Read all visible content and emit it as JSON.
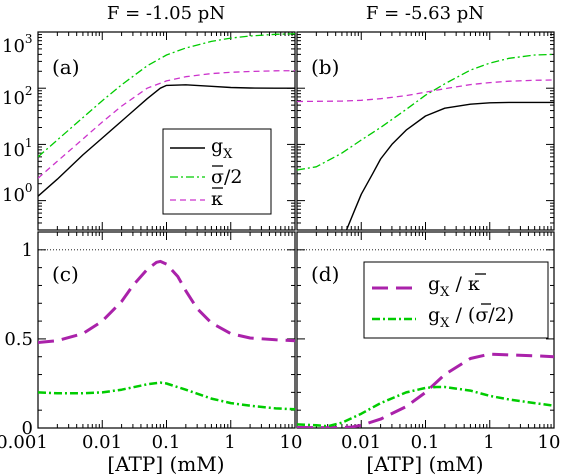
{
  "chart_data": [
    {
      "panel": "(a)",
      "title": "F = -1.05 pN",
      "type": "line",
      "xscale": "log",
      "yscale": "log",
      "xlim": [
        0.001,
        10
      ],
      "ylim": [
        0.3,
        1000
      ],
      "xlabel": "",
      "ylabel": "",
      "yticks": [
        1,
        10,
        100,
        1000
      ],
      "ytick_labels_main": [
        "10",
        "10",
        "10",
        "10"
      ],
      "ytick_labels_exp": [
        "0",
        "1",
        "2",
        "3"
      ],
      "legend_position": "lower-right",
      "series": [
        {
          "key": "gX",
          "name": "g",
          "name_sub": "X",
          "color": "#000000",
          "dash": "solid",
          "width": 1.4,
          "x": [
            0.001,
            0.002,
            0.005,
            0.01,
            0.02,
            0.05,
            0.08,
            0.1,
            0.2,
            0.5,
            1,
            2,
            5,
            10
          ],
          "y": [
            1.2,
            2.4,
            6.5,
            13,
            26,
            65,
            100,
            112,
            115,
            108,
            103,
            101,
            100,
            100
          ]
        },
        {
          "key": "sigma",
          "name": "σ/2",
          "color": "#00cc00",
          "dash": "dashdot",
          "width": 1.3,
          "x": [
            0.001,
            0.002,
            0.005,
            0.01,
            0.02,
            0.05,
            0.1,
            0.2,
            0.5,
            1,
            2,
            5,
            10
          ],
          "y": [
            6,
            12,
            30,
            60,
            115,
            250,
            390,
            520,
            680,
            780,
            850,
            910,
            930
          ]
        },
        {
          "key": "kappa",
          "name": "κ",
          "color": "#cc33cc",
          "dash": "dashed",
          "width": 1.3,
          "x": [
            0.001,
            0.002,
            0.005,
            0.01,
            0.02,
            0.05,
            0.1,
            0.2,
            0.5,
            1,
            2,
            5,
            10
          ],
          "y": [
            2.5,
            5,
            12.5,
            25,
            48,
            100,
            135,
            160,
            182,
            192,
            198,
            204,
            205
          ]
        }
      ]
    },
    {
      "panel": "(b)",
      "title": "F = -5.63 pN",
      "type": "line",
      "xscale": "log",
      "yscale": "log",
      "xlim": [
        0.001,
        10
      ],
      "ylim": [
        0.3,
        1000
      ],
      "series": [
        {
          "key": "gX",
          "name": "g",
          "name_sub": "X",
          "color": "#000000",
          "dash": "solid",
          "width": 1.4,
          "x": [
            0.0059,
            0.008,
            0.01,
            0.015,
            0.02,
            0.03,
            0.05,
            0.1,
            0.2,
            0.5,
            1,
            2,
            5,
            10
          ],
          "y": [
            0.3,
            0.7,
            1.3,
            3,
            5.5,
            10,
            18,
            32,
            44,
            52,
            55,
            56,
            56,
            56
          ]
        },
        {
          "key": "sigma",
          "name": "σ/2",
          "color": "#00cc00",
          "dash": "dashdot",
          "width": 1.3,
          "x": [
            0.001,
            0.002,
            0.005,
            0.01,
            0.02,
            0.05,
            0.1,
            0.2,
            0.5,
            1,
            2,
            5,
            10
          ],
          "y": [
            3.5,
            4,
            7,
            12,
            20,
            42,
            75,
            120,
            210,
            280,
            340,
            390,
            400
          ]
        },
        {
          "key": "kappa",
          "name": "κ",
          "color": "#cc33cc",
          "dash": "dashed",
          "width": 1.3,
          "x": [
            0.001,
            0.005,
            0.01,
            0.02,
            0.05,
            0.1,
            0.2,
            0.5,
            1,
            2,
            5,
            10
          ],
          "y": [
            58,
            59,
            61,
            65,
            74,
            85,
            98,
            116,
            126,
            133,
            138,
            140
          ]
        }
      ]
    },
    {
      "panel": "(c)",
      "type": "line",
      "xscale": "log",
      "yscale": "linear",
      "xlim": [
        0.001,
        10
      ],
      "ylim": [
        0,
        1.1
      ],
      "xlabel": "[ATP] (mM)",
      "yticks": [
        0,
        0.5,
        1
      ],
      "ytick_labels": [
        "0",
        "0.5",
        "1"
      ],
      "xticks": [
        0.001,
        0.01,
        0.1,
        1,
        10
      ],
      "xtick_labels": [
        "0.001",
        "0.01",
        "0.1",
        "1",
        "10"
      ],
      "reference_line": {
        "y": 1,
        "style": "dotted"
      },
      "series": [
        {
          "key": "gk",
          "name": "g",
          "name_sub": "X",
          "name_tail": " / κ",
          "color": "#aa22aa",
          "dash": "longdash",
          "width": 3,
          "x": [
            0.001,
            0.002,
            0.005,
            0.01,
            0.02,
            0.03,
            0.05,
            0.07,
            0.08,
            0.1,
            0.15,
            0.2,
            0.3,
            0.5,
            1,
            2,
            5,
            10
          ],
          "y": [
            0.48,
            0.49,
            0.53,
            0.6,
            0.71,
            0.8,
            0.89,
            0.93,
            0.935,
            0.92,
            0.85,
            0.77,
            0.67,
            0.59,
            0.53,
            0.505,
            0.495,
            0.49
          ]
        },
        {
          "key": "gs",
          "name": "g",
          "name_sub": "X",
          "name_tail": " / (σ/2)",
          "color": "#00cc00",
          "dash": "dashdot",
          "width": 2.5,
          "x": [
            0.001,
            0.002,
            0.005,
            0.01,
            0.02,
            0.05,
            0.08,
            0.1,
            0.2,
            0.5,
            1,
            2,
            5,
            10
          ],
          "y": [
            0.2,
            0.195,
            0.195,
            0.2,
            0.215,
            0.245,
            0.255,
            0.25,
            0.215,
            0.165,
            0.14,
            0.125,
            0.11,
            0.105
          ]
        }
      ]
    },
    {
      "panel": "(d)",
      "type": "line",
      "xscale": "log",
      "yscale": "linear",
      "xlim": [
        0.001,
        10
      ],
      "ylim": [
        0,
        1.1
      ],
      "xlabel": "[ATP] (mM)",
      "xticks": [
        0.01,
        0.1,
        1,
        10
      ],
      "xtick_labels": [
        "0.01",
        "0.1",
        "1",
        "10"
      ],
      "reference_line": {
        "y": 1,
        "style": "dotted"
      },
      "legend_position": "top-right",
      "series": [
        {
          "key": "gk",
          "name": "g",
          "name_sub": "X",
          "name_tail": " / κ",
          "color": "#aa22aa",
          "dash": "longdash",
          "width": 3,
          "x": [
            0.001,
            0.002,
            0.003,
            0.005,
            0.007,
            0.01,
            0.02,
            0.05,
            0.1,
            0.2,
            0.5,
            1,
            2,
            5,
            10
          ],
          "y": [
            0.003,
            0.002,
            0.002,
            0.003,
            0.005,
            0.015,
            0.05,
            0.12,
            0.2,
            0.3,
            0.39,
            0.415,
            0.41,
            0.405,
            0.4
          ]
        },
        {
          "key": "gs",
          "name": "g",
          "name_sub": "X",
          "name_tail": " / (σ/2)",
          "color": "#00cc00",
          "dash": "dashdot",
          "width": 2.5,
          "x": [
            0.001,
            0.002,
            0.003,
            0.005,
            0.01,
            0.02,
            0.05,
            0.1,
            0.15,
            0.2,
            0.5,
            1,
            2,
            5,
            10
          ],
          "y": [
            0.02,
            0.015,
            0.01,
            0.03,
            0.08,
            0.14,
            0.2,
            0.225,
            0.23,
            0.23,
            0.21,
            0.18,
            0.16,
            0.14,
            0.125
          ]
        }
      ]
    }
  ]
}
